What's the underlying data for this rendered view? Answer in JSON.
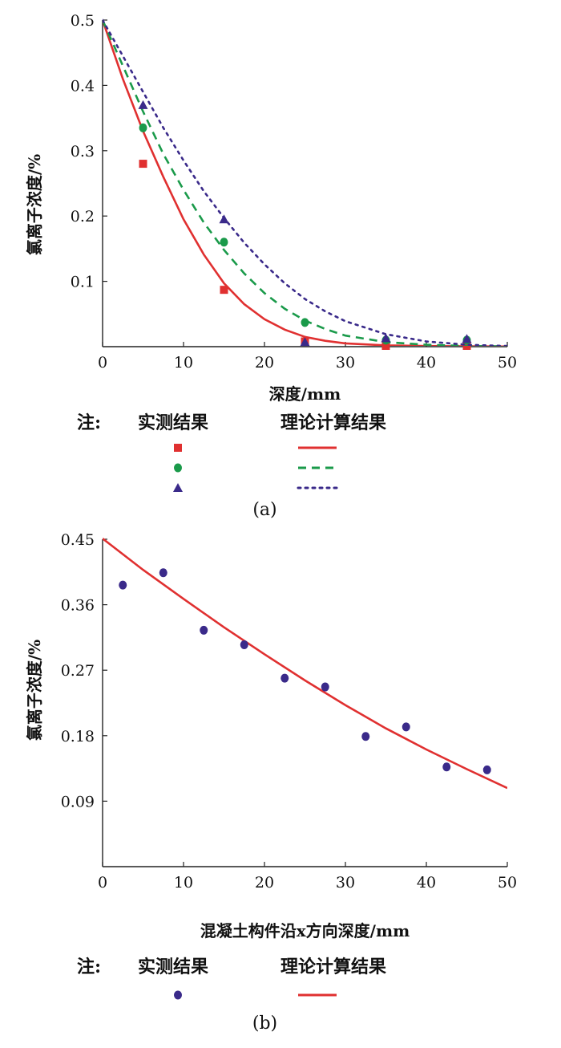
{
  "chart_data": [
    {
      "type": "scatter",
      "panel_label": "(a)",
      "xlabel": "深度/mm",
      "ylabel": "氯离子浓度/%",
      "xlim": [
        0,
        50
      ],
      "ylim": [
        0,
        0.5
      ],
      "x_ticks": [
        "0",
        "10",
        "20",
        "30",
        "40",
        "50"
      ],
      "y_ticks": [
        "0.1",
        "0.2",
        "0.3",
        "0.4",
        "0.5"
      ],
      "y_tick_values": [
        0.1,
        0.2,
        0.3,
        0.4,
        0.5
      ],
      "legend": {
        "note": "注:",
        "measured": "实测结果",
        "theory": "理论计算结果"
      },
      "series": [
        {
          "color": "#e03030",
          "marker": "square",
          "line_style": "solid",
          "measured": [
            [
              5,
              0.28
            ],
            [
              15,
              0.087
            ],
            [
              25,
              0.008
            ],
            [
              35,
              0.001
            ],
            [
              45,
              0.001
            ]
          ],
          "fit": [
            [
              0,
              0.5
            ],
            [
              2.5,
              0.41
            ],
            [
              5,
              0.33
            ],
            [
              7.5,
              0.26
            ],
            [
              10,
              0.195
            ],
            [
              12.5,
              0.141
            ],
            [
              15,
              0.097
            ],
            [
              17.5,
              0.065
            ],
            [
              20,
              0.042
            ],
            [
              22.5,
              0.026
            ],
            [
              25,
              0.015
            ],
            [
              27.5,
              0.009
            ],
            [
              30,
              0.005
            ],
            [
              35,
              0.002
            ],
            [
              40,
              0.001
            ],
            [
              45,
              0.0005
            ],
            [
              50,
              0.0002
            ]
          ]
        },
        {
          "color": "#1a9a4a",
          "marker": "circle",
          "line_style": "dashed",
          "measured": [
            [
              5,
              0.335
            ],
            [
              15,
              0.16
            ],
            [
              25,
              0.037
            ],
            [
              35,
              0.01
            ],
            [
              45,
              0.01
            ]
          ],
          "fit": [
            [
              0,
              0.5
            ],
            [
              2.5,
              0.43
            ],
            [
              5,
              0.36
            ],
            [
              7.5,
              0.295
            ],
            [
              10,
              0.24
            ],
            [
              12.5,
              0.19
            ],
            [
              15,
              0.148
            ],
            [
              17.5,
              0.112
            ],
            [
              20,
              0.082
            ],
            [
              22.5,
              0.058
            ],
            [
              25,
              0.04
            ],
            [
              27.5,
              0.027
            ],
            [
              30,
              0.017
            ],
            [
              35,
              0.007
            ],
            [
              40,
              0.003
            ],
            [
              45,
              0.001
            ],
            [
              50,
              0.0005
            ]
          ]
        },
        {
          "color": "#3a2a8a",
          "marker": "triangle",
          "line_style": "dotted",
          "measured": [
            [
              5,
              0.37
            ],
            [
              15,
              0.195
            ],
            [
              25,
              0.007
            ],
            [
              35,
              0.013
            ],
            [
              45,
              0.012
            ]
          ],
          "fit": [
            [
              0,
              0.5
            ],
            [
              2.5,
              0.445
            ],
            [
              5,
              0.39
            ],
            [
              7.5,
              0.335
            ],
            [
              10,
              0.285
            ],
            [
              12.5,
              0.238
            ],
            [
              15,
              0.197
            ],
            [
              17.5,
              0.159
            ],
            [
              20,
              0.126
            ],
            [
              22.5,
              0.097
            ],
            [
              25,
              0.073
            ],
            [
              27.5,
              0.054
            ],
            [
              30,
              0.039
            ],
            [
              35,
              0.019
            ],
            [
              40,
              0.008
            ],
            [
              45,
              0.003
            ],
            [
              50,
              0.001
            ]
          ]
        }
      ]
    },
    {
      "type": "scatter",
      "panel_label": "(b)",
      "xlabel": "混凝土构件沿x方向深度/mm",
      "ylabel": "氯离子浓度/%",
      "xlim": [
        0,
        50
      ],
      "ylim": [
        0,
        0.45
      ],
      "x_ticks": [
        "0",
        "10",
        "20",
        "30",
        "40",
        "50"
      ],
      "y_ticks": [
        "0.09",
        "0.18",
        "0.27",
        "0.36",
        "0.45"
      ],
      "y_tick_values": [
        0.09,
        0.18,
        0.27,
        0.36,
        0.45
      ],
      "legend": {
        "note": "注:",
        "measured": "实测结果",
        "theory": "理论计算结果"
      },
      "series": [
        {
          "color": "#e03030",
          "marker_color": "#3a2a8a",
          "marker": "circle",
          "line_style": "solid",
          "measured": [
            [
              2.5,
              0.387
            ],
            [
              7.5,
              0.404
            ],
            [
              12.5,
              0.325
            ],
            [
              17.5,
              0.305
            ],
            [
              22.5,
              0.259
            ],
            [
              27.5,
              0.247
            ],
            [
              32.5,
              0.179
            ],
            [
              37.5,
              0.192
            ],
            [
              42.5,
              0.137
            ],
            [
              47.5,
              0.133
            ]
          ],
          "fit": [
            [
              0,
              0.451
            ],
            [
              5,
              0.408
            ],
            [
              10,
              0.368
            ],
            [
              15,
              0.329
            ],
            [
              20,
              0.292
            ],
            [
              25,
              0.256
            ],
            [
              30,
              0.222
            ],
            [
              35,
              0.19
            ],
            [
              40,
              0.161
            ],
            [
              45,
              0.134
            ],
            [
              50,
              0.108
            ]
          ]
        }
      ]
    }
  ]
}
